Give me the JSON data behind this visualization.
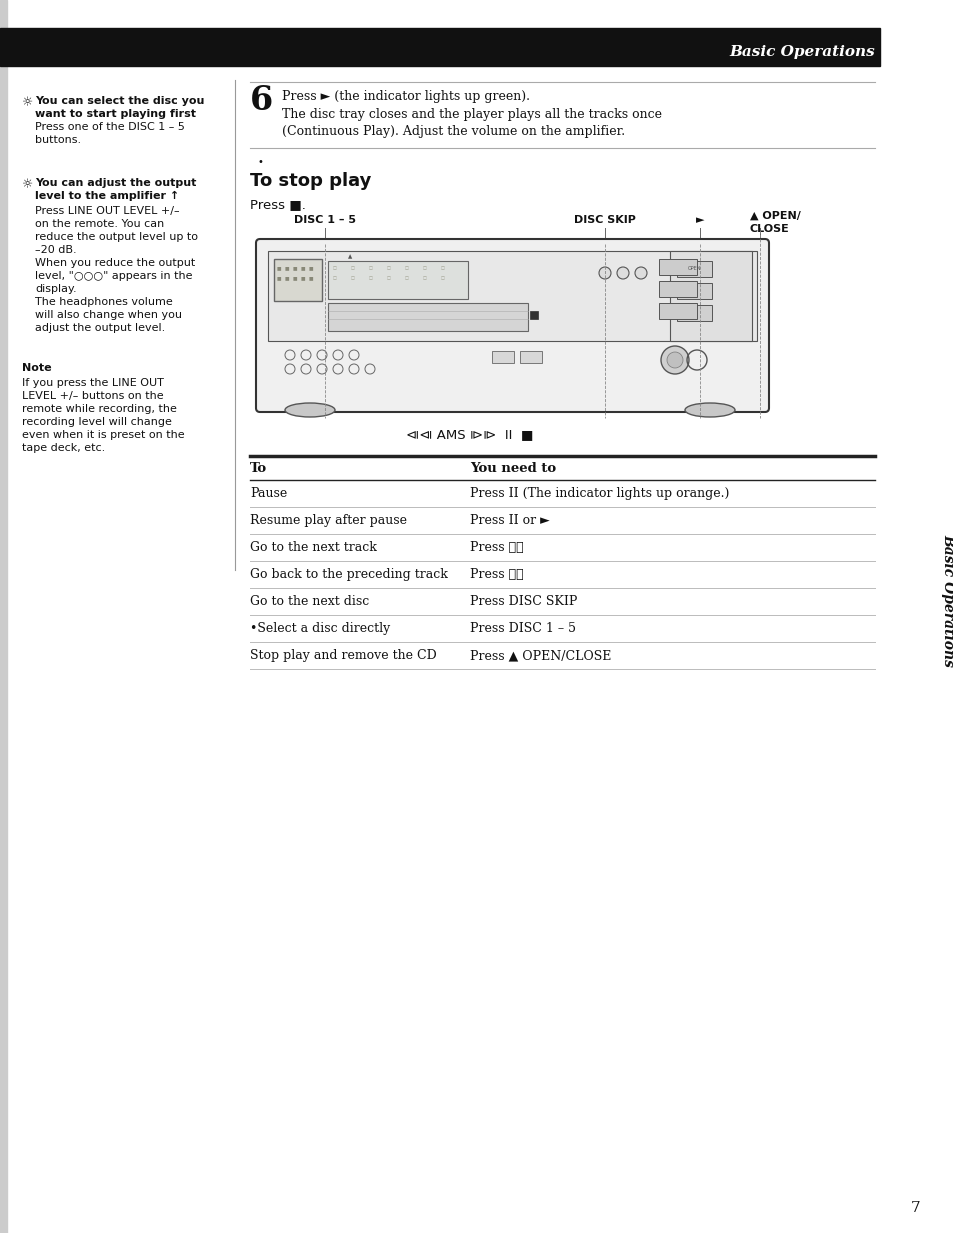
{
  "bg_color": "#ffffff",
  "header_bar_color": "#111111",
  "header_text": "Basic Operations",
  "header_text_color": "#ffffff",
  "sidebar_text": "Basic Operations",
  "page_number": "7",
  "note_label": "Note",
  "tip1_bold": "You can select the disc you\nwant to start playing first",
  "tip1_body": "Press one of the DISC 1 – 5\nbuttons.",
  "tip2_bold": "You can adjust the output\nlevel to the amplifier ↑",
  "tip2_body": "Press LINE OUT LEVEL +/–\non the remote. You can\nreduce the output level up to\n–20 dB.\nWhen you reduce the output\nlevel, \"○○○\" appears in the\ndisplay.\nThe headphones volume\nwill also change when you\nadjust the output level.",
  "note_body": "If you press the LINE OUT\nLEVEL +/– buttons on the\nremote while recording, the\nrecording level will change\neven when it is preset on the\ntape deck, etc.",
  "step6_number": "6",
  "step6_line1": "Press ► (the indicator lights up green).",
  "step6_line2": "The disc tray closes and the player plays all the tracks once\n(Continuous Play). Adjust the volume on the amplifier.",
  "stop_play_title": "To stop play",
  "stop_play_body": "Press ■.",
  "disc_label": "DISC 1 – 5",
  "disc_skip_label": "DISC SKIP",
  "open_close_label1": "▲ OPEN/",
  "open_close_label2": "CLOSE",
  "play_btn_label": "►",
  "transport_label": "⧏⧏ AMS ⧐⧐  II  ■",
  "table_header_col1": "To",
  "table_header_col2": "You need to",
  "table_rows": [
    [
      "Pause",
      "Press II (The indicator lights up orange.)"
    ],
    [
      "Resume play after pause",
      "Press II or ►"
    ],
    [
      "Go to the next track",
      "Press ⧐⧐"
    ],
    [
      "Go back to the preceding track",
      "Press ⧏⧏"
    ],
    [
      "Go to the next disc",
      "Press DISC SKIP"
    ],
    [
      "•Select a disc directly",
      "Press DISC 1 – 5"
    ],
    [
      "Stop play and remove the CD",
      "Press ▲ OPEN/CLOSE"
    ]
  ],
  "divider_color": "#aaaaaa",
  "table_line_color": "#bbbbbb",
  "thick_line_color": "#222222"
}
